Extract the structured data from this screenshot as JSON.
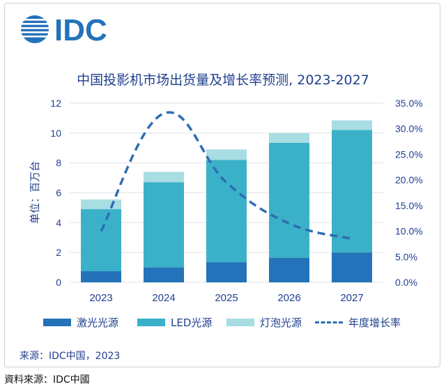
{
  "logo_text": "IDC",
  "colors": {
    "laser": "#2472b9",
    "led": "#3ab1c8",
    "bulb": "#a8dde3",
    "growth": "#2e6db4",
    "text": "#1f3f8f"
  },
  "chart_data": {
    "type": "bar",
    "stacked": true,
    "title": "中国投影机市场出货量及增长率预测, 2023-2027",
    "ylabel": "单位：百万台",
    "xlabel": "",
    "categories": [
      "2023",
      "2024",
      "2025",
      "2026",
      "2027"
    ],
    "ylim": [
      0,
      12
    ],
    "yticks": [
      "0",
      "2",
      "4",
      "6",
      "8",
      "10",
      "12"
    ],
    "y2lim": [
      0,
      35
    ],
    "y2ticks": [
      "0.0%",
      "5.0%",
      "10.0%",
      "15.0%",
      "20.0%",
      "25.0%",
      "30.0%",
      "35.0%"
    ],
    "series": [
      {
        "name": "激光光源",
        "type": "bar",
        "values": [
          0.75,
          1.0,
          1.35,
          1.65,
          2.0
        ]
      },
      {
        "name": "LED光源",
        "type": "bar",
        "values": [
          4.15,
          5.7,
          6.85,
          7.7,
          8.2
        ]
      },
      {
        "name": "灯泡光源",
        "type": "bar",
        "values": [
          0.65,
          0.7,
          0.7,
          0.65,
          0.65
        ]
      },
      {
        "name": "年度增长率",
        "type": "line",
        "axis": "right",
        "values": [
          10.0,
          33.0,
          19.5,
          11.5,
          8.5
        ]
      }
    ],
    "legend_position": "bottom",
    "grid": true
  },
  "source": "来源：IDC中国，2023",
  "footnote": "資料來源：IDC中國"
}
